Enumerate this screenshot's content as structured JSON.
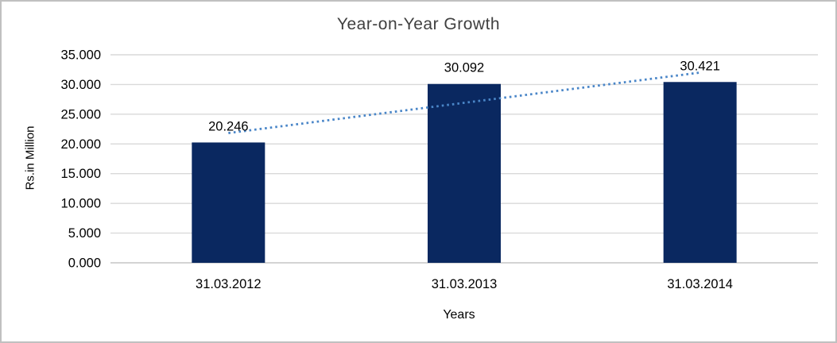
{
  "chart": {
    "title": "Year-on-Year Growth",
    "x_axis_title": "Years",
    "y_axis_title": "Rs.in Million"
  },
  "chart_data": {
    "type": "bar",
    "title": "Year-on-Year Growth",
    "xlabel": "Years",
    "ylabel": "Rs.in Million",
    "categories": [
      "31.03.2012",
      "31.03.2013",
      "31.03.2014"
    ],
    "values": [
      20.246,
      30.092,
      30.421
    ],
    "data_labels": [
      "20.246",
      "30.092",
      "30.421"
    ],
    "y_ticks": [
      "0.000",
      "5.000",
      "10.000",
      "15.000",
      "20.000",
      "25.000",
      "30.000",
      "35.000"
    ],
    "ylim": [
      0,
      35
    ],
    "y_tick_step": 5,
    "grid": true,
    "legend": false,
    "trendline": {
      "type": "linear",
      "style": "dotted"
    },
    "colors": {
      "bar": "#0A2860",
      "gridline": "#D9D9D9",
      "axis_line": "#C6C6C6",
      "trendline": "#4A86C8",
      "title_text": "#404040",
      "tick_text": "#000000",
      "border": "#C0C0C0",
      "background": "#FFFFFF"
    }
  }
}
